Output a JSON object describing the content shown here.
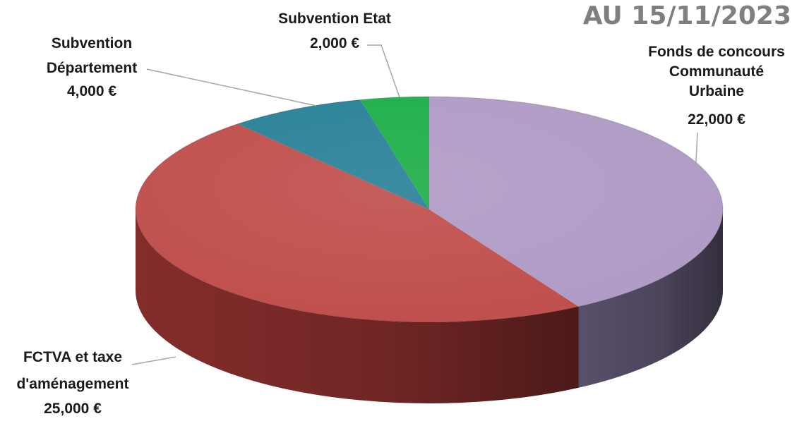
{
  "chart_data": {
    "type": "pie",
    "title": "AU 15/11/2023",
    "start": "top, clockwise",
    "slices": [
      {
        "label": "Fonds de concours Communauté Urbaine",
        "label_lines": [
          "Fonds de concours",
          "Communauté",
          "Urbaine"
        ],
        "value_text": "22,000 €",
        "value": 22000,
        "color": "#b09cc6",
        "side_color": "#5d5470"
      },
      {
        "label": "FCTVA et taxe d'aménagement",
        "label_lines": [
          "FCTVA et taxe",
          "d'aménagement"
        ],
        "value_text": "25,000 €",
        "value": 25000,
        "color": "#c0504d",
        "side_color": "#8a2f2d"
      },
      {
        "label": "Subvention Département",
        "label_lines": [
          "Subvention",
          "Département"
        ],
        "value_text": "4,000 €",
        "value": 4000,
        "color": "#2b8299",
        "side_color": "#1d5a6b"
      },
      {
        "label": "Subvention Etat",
        "label_lines": [
          "Subvention Etat"
        ],
        "value_text": "2,000 €",
        "value": 2000,
        "color": "#1faf4a",
        "side_color": "#137530"
      }
    ]
  }
}
